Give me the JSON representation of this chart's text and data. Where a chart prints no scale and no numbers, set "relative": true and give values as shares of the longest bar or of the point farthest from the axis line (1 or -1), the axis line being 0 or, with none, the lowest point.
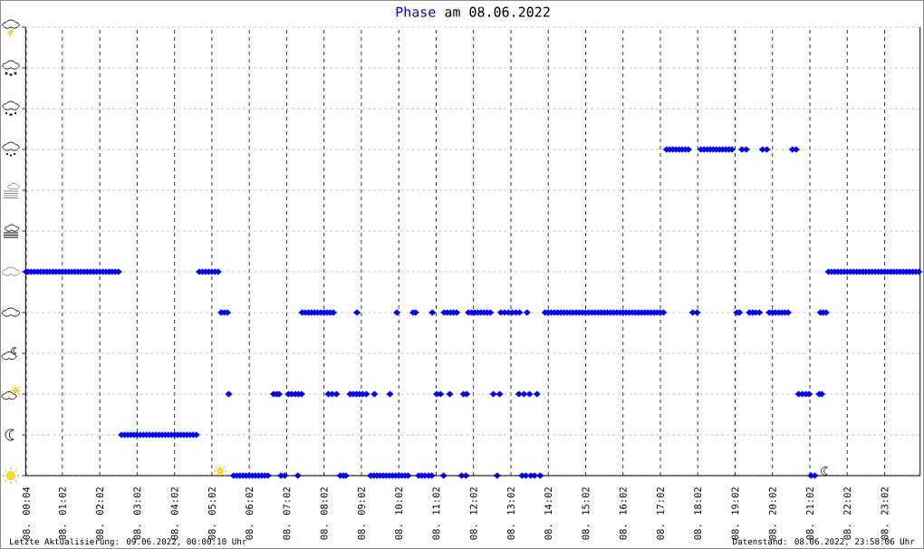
{
  "chart_data": {
    "type": "scatter",
    "title": "am 08.06.2022",
    "relative": true,
    "annotations": [
      "Letzte Aktualisierung: 09.06.2022, 00:00:10 Uhr",
      "Datenstand: 08.06.2022, 23:58:06 Uhr"
    ],
    "xlim": [
      "2022-06-08T00:03",
      "2022-06-08T23:59"
    ],
    "xticks": [
      {
        "value": "2022-06-08T00:04",
        "label": "08. 00:04"
      },
      {
        "value": "2022-06-08T01:02",
        "label": "08. 01:02"
      },
      {
        "value": "2022-06-08T02:02",
        "label": "08. 02:02"
      },
      {
        "value": "2022-06-08T03:02",
        "label": "08. 03:02"
      },
      {
        "value": "2022-06-08T04:02",
        "label": "08. 04:02"
      },
      {
        "value": "2022-06-08T05:02",
        "label": "08. 05:02"
      },
      {
        "value": "2022-06-08T06:02",
        "label": "08. 06:02"
      },
      {
        "value": "2022-06-08T07:02",
        "label": "08. 07:02"
      },
      {
        "value": "2022-06-08T08:02",
        "label": "08. 08:02"
      },
      {
        "value": "2022-06-08T09:02",
        "label": "08. 09:02"
      },
      {
        "value": "2022-06-08T10:02",
        "label": "08. 10:02"
      },
      {
        "value": "2022-06-08T11:02",
        "label": "08. 11:02"
      },
      {
        "value": "2022-06-08T12:02",
        "label": "08. 12:02"
      },
      {
        "value": "2022-06-08T13:02",
        "label": "08. 13:02"
      },
      {
        "value": "2022-06-08T14:02",
        "label": "08. 14:02"
      },
      {
        "value": "2022-06-08T15:02",
        "label": "08. 15:02"
      },
      {
        "value": "2022-06-08T16:02",
        "label": "08. 16:02"
      },
      {
        "value": "2022-06-08T17:02",
        "label": "08. 17:02"
      },
      {
        "value": "2022-06-08T18:02",
        "label": "08. 18:02"
      },
      {
        "value": "2022-06-08T19:02",
        "label": "08. 19:02"
      },
      {
        "value": "2022-06-08T20:02",
        "label": "08. 20:02"
      },
      {
        "value": "2022-06-08T21:02",
        "label": "08. 21:02"
      },
      {
        "value": "2022-06-08T22:02",
        "label": "08. 22:02"
      },
      {
        "value": "2022-06-08T23:02",
        "label": "08. 23:02"
      }
    ],
    "grid": true,
    "marker": "diamond",
    "series": [
      {
        "name": "Phase",
        "color": "#0000ff",
        "x": [
          "2022-06-08T00:04",
          "2022-06-08T00:07",
          "2022-06-08T00:12",
          "2022-06-08T00:17",
          "2022-06-08T00:22",
          "2022-06-08T00:27",
          "2022-06-08T00:32",
          "2022-06-08T00:37",
          "2022-06-08T00:42",
          "2022-06-08T00:47",
          "2022-06-08T00:52",
          "2022-06-08T00:57",
          "2022-06-08T01:02",
          "2022-06-08T01:07",
          "2022-06-08T01:12",
          "2022-06-08T01:17",
          "2022-06-08T01:22",
          "2022-06-08T01:27",
          "2022-06-08T01:32",
          "2022-06-08T01:37",
          "2022-06-08T01:42",
          "2022-06-08T01:47",
          "2022-06-08T01:52",
          "2022-06-08T01:57",
          "2022-06-08T02:02",
          "2022-06-08T02:07",
          "2022-06-08T02:12",
          "2022-06-08T02:17",
          "2022-06-08T02:22",
          "2022-06-08T02:27",
          "2022-06-08T02:32",
          "2022-06-08T02:37",
          "2022-06-08T02:42",
          "2022-06-08T02:47",
          "2022-06-08T02:52",
          "2022-06-08T02:57",
          "2022-06-08T03:02",
          "2022-06-08T03:07",
          "2022-06-08T03:12",
          "2022-06-08T03:17",
          "2022-06-08T03:22",
          "2022-06-08T03:27",
          "2022-06-08T03:32",
          "2022-06-08T03:37",
          "2022-06-08T03:42",
          "2022-06-08T03:47",
          "2022-06-08T03:52",
          "2022-06-08T03:57",
          "2022-06-08T04:02",
          "2022-06-08T04:07",
          "2022-06-08T04:12",
          "2022-06-08T04:17",
          "2022-06-08T04:22",
          "2022-06-08T04:27",
          "2022-06-08T04:32",
          "2022-06-08T04:37",
          "2022-06-08T04:42",
          "2022-06-08T04:47",
          "2022-06-08T04:52",
          "2022-06-08T04:57",
          "2022-06-08T05:02",
          "2022-06-08T05:07",
          "2022-06-08T05:12",
          "2022-06-08T05:17",
          "2022-06-08T05:22",
          "2022-06-08T05:27",
          "2022-06-08T05:29",
          "2022-06-08T05:37",
          "2022-06-08T05:42",
          "2022-06-08T05:47",
          "2022-06-08T05:52",
          "2022-06-08T05:57",
          "2022-06-08T06:02",
          "2022-06-08T06:07",
          "2022-06-08T06:12",
          "2022-06-08T06:17",
          "2022-06-08T06:22",
          "2022-06-08T06:27",
          "2022-06-08T06:32",
          "2022-06-08T06:41",
          "2022-06-08T06:46",
          "2022-06-08T06:50",
          "2022-06-08T06:53",
          "2022-06-08T06:59",
          "2022-06-08T07:05",
          "2022-06-08T07:10",
          "2022-06-08T07:16",
          "2022-06-08T07:21",
          "2022-06-08T07:26",
          "2022-06-08T07:20",
          "2022-06-08T07:27",
          "2022-06-08T07:32",
          "2022-06-08T07:37",
          "2022-06-08T07:42",
          "2022-06-08T07:47",
          "2022-06-08T07:52",
          "2022-06-08T07:57",
          "2022-06-08T08:02",
          "2022-06-08T08:07",
          "2022-06-08T08:12",
          "2022-06-08T08:17",
          "2022-06-08T08:09",
          "2022-06-08T08:15",
          "2022-06-08T08:22",
          "2022-06-08T08:28",
          "2022-06-08T08:33",
          "2022-06-08T08:37",
          "2022-06-08T08:44",
          "2022-06-08T08:49",
          "2022-06-08T08:54",
          "2022-06-08T08:59",
          "2022-06-08T09:04",
          "2022-06-08T09:10",
          "2022-06-08T08:55",
          "2022-06-08T09:17",
          "2022-06-08T09:22",
          "2022-06-08T09:27",
          "2022-06-08T09:32",
          "2022-06-08T09:37",
          "2022-06-08T09:42",
          "2022-06-08T09:47",
          "2022-06-08T09:52",
          "2022-06-08T09:57",
          "2022-06-08T10:02",
          "2022-06-08T10:07",
          "2022-06-08T10:12",
          "2022-06-08T10:17",
          "2022-06-08T09:23",
          "2022-06-08T09:48",
          "2022-06-08T09:59",
          "2022-06-08T10:25",
          "2022-06-08T10:29",
          "2022-06-08T10:56",
          "2022-06-08T10:34",
          "2022-06-08T10:39",
          "2022-06-08T10:44",
          "2022-06-08T10:50",
          "2022-06-08T10:55",
          "2022-06-08T11:03",
          "2022-06-08T11:09",
          "2022-06-08T11:14",
          "2022-06-08T11:15",
          "2022-06-08T11:20",
          "2022-06-08T11:25",
          "2022-06-08T11:30",
          "2022-06-08T11:35",
          "2022-06-08T11:24",
          "2022-06-08T11:43",
          "2022-06-08T11:50",
          "2022-06-08T11:46",
          "2022-06-08T11:51",
          "2022-06-08T11:54",
          "2022-06-08T11:59",
          "2022-06-08T12:04",
          "2022-06-08T12:09",
          "2022-06-08T12:14",
          "2022-06-08T12:19",
          "2022-06-08T12:24",
          "2022-06-08T12:29",
          "2022-06-08T12:34",
          "2022-06-08T12:44",
          "2022-06-08T12:40",
          "2022-06-08T12:46",
          "2022-06-08T12:52",
          "2022-06-08T12:58",
          "2022-06-08T13:04",
          "2022-06-08T13:10",
          "2022-06-08T13:16",
          "2022-06-08T13:15",
          "2022-06-08T13:23",
          "2022-06-08T13:32",
          "2022-06-08T13:44",
          "2022-06-08T13:20",
          "2022-06-08T13:26",
          "2022-06-08T13:34",
          "2022-06-08T13:40",
          "2022-06-08T13:49",
          "2022-06-08T13:28",
          "2022-06-08T13:57",
          "2022-06-08T14:02",
          "2022-06-08T14:07",
          "2022-06-08T14:12",
          "2022-06-08T14:17",
          "2022-06-08T14:22",
          "2022-06-08T14:27",
          "2022-06-08T14:32",
          "2022-06-08T14:37",
          "2022-06-08T14:42",
          "2022-06-08T14:47",
          "2022-06-08T14:52",
          "2022-06-08T14:57",
          "2022-06-08T15:02",
          "2022-06-08T15:07",
          "2022-06-08T15:12",
          "2022-06-08T15:17",
          "2022-06-08T15:22",
          "2022-06-08T15:27",
          "2022-06-08T15:32",
          "2022-06-08T15:37",
          "2022-06-08T15:42",
          "2022-06-08T15:47",
          "2022-06-08T15:52",
          "2022-06-08T15:57",
          "2022-06-08T16:02",
          "2022-06-08T16:07",
          "2022-06-08T16:12",
          "2022-06-08T16:17",
          "2022-06-08T16:22",
          "2022-06-08T16:27",
          "2022-06-08T16:32",
          "2022-06-08T16:37",
          "2022-06-08T16:42",
          "2022-06-08T16:47",
          "2022-06-08T16:52",
          "2022-06-08T16:57",
          "2022-06-08T17:02",
          "2022-06-08T17:07",
          "2022-06-08T17:12",
          "2022-06-08T17:17",
          "2022-06-08T17:22",
          "2022-06-08T17:27",
          "2022-06-08T17:32",
          "2022-06-08T17:37",
          "2022-06-08T17:42",
          "2022-06-08T17:47",
          "2022-06-08T17:54",
          "2022-06-08T18:01",
          "2022-06-08T18:07",
          "2022-06-08T18:12",
          "2022-06-08T18:17",
          "2022-06-08T18:22",
          "2022-06-08T18:27",
          "2022-06-08T18:32",
          "2022-06-08T18:37",
          "2022-06-08T18:42",
          "2022-06-08T18:47",
          "2022-06-08T18:52",
          "2022-06-08T18:57",
          "2022-06-08T19:05",
          "2022-06-08T19:09",
          "2022-06-08T19:13",
          "2022-06-08T19:20",
          "2022-06-08T19:25",
          "2022-06-08T19:30",
          "2022-06-08T19:35",
          "2022-06-08T19:41",
          "2022-06-08T19:46",
          "2022-06-08T19:53",
          "2022-06-08T19:57",
          "2022-06-08T20:02",
          "2022-06-08T20:07",
          "2022-06-08T20:12",
          "2022-06-08T20:17",
          "2022-06-08T20:22",
          "2022-06-08T20:27",
          "2022-06-08T20:34",
          "2022-06-08T20:40",
          "2022-06-08T20:44",
          "2022-06-08T20:50",
          "2022-06-08T20:56",
          "2022-06-08T21:01",
          "2022-06-08T21:04",
          "2022-06-08T21:10",
          "2022-06-08T21:17",
          "2022-06-08T21:21",
          "2022-06-08T21:19",
          "2022-06-08T21:23",
          "2022-06-08T21:28",
          "2022-06-08T21:32",
          "2022-06-08T21:37",
          "2022-06-08T21:42",
          "2022-06-08T21:47",
          "2022-06-08T21:52",
          "2022-06-08T21:57",
          "2022-06-08T22:02",
          "2022-06-08T22:07",
          "2022-06-08T22:12",
          "2022-06-08T22:17",
          "2022-06-08T22:22",
          "2022-06-08T22:27",
          "2022-06-08T22:32",
          "2022-06-08T22:37",
          "2022-06-08T22:42",
          "2022-06-08T22:47",
          "2022-06-08T22:52",
          "2022-06-08T22:57",
          "2022-06-08T23:02",
          "2022-06-08T23:07",
          "2022-06-08T23:12",
          "2022-06-08T23:17",
          "2022-06-08T23:22",
          "2022-06-08T23:27",
          "2022-06-08T23:32",
          "2022-06-08T23:37",
          "2022-06-08T23:42",
          "2022-06-08T23:47",
          "2022-06-08T23:52",
          "2022-06-08T23:57"
        ],
        "values": [
          0.625,
          0.625,
          0.625,
          0.625,
          0.625,
          0.625,
          0.625,
          0.625,
          0.625,
          0.625,
          0.625,
          0.625,
          0.625,
          0.625,
          0.625,
          0.625,
          0.625,
          0.625,
          0.625,
          0.625,
          0.625,
          0.625,
          0.625,
          0.625,
          0.625,
          0.625,
          0.625,
          0.625,
          0.625,
          0.625,
          0.625,
          0.125,
          0.125,
          0.125,
          0.125,
          0.125,
          0.125,
          0.125,
          0.125,
          0.125,
          0.125,
          0.125,
          0.125,
          0.125,
          0.125,
          0.125,
          0.125,
          0.125,
          0.125,
          0.125,
          0.125,
          0.125,
          0.125,
          0.125,
          0.125,
          0.125,
          0.625,
          0.625,
          0.625,
          0.625,
          0.625,
          0.625,
          0.625,
          0.5,
          0.5,
          0.5,
          0.25,
          0,
          0,
          0,
          0,
          0,
          0,
          0,
          0,
          0,
          0,
          0,
          0,
          0.25,
          0.25,
          0.25,
          0,
          0,
          0.25,
          0.25,
          0.25,
          0.25,
          0.25,
          0,
          0.5,
          0.5,
          0.5,
          0.5,
          0.5,
          0.5,
          0.5,
          0.5,
          0.5,
          0.5,
          0.5,
          0.25,
          0.25,
          0.25,
          0,
          0,
          0,
          0.25,
          0.25,
          0.25,
          0.25,
          0.25,
          0.25,
          0.5,
          0,
          0,
          0,
          0,
          0,
          0,
          0,
          0,
          0,
          0,
          0,
          0,
          0,
          0.25,
          0.25,
          0.5,
          0.5,
          0.5,
          0.5,
          0,
          0,
          0,
          0,
          0,
          0.25,
          0.25,
          0,
          0.5,
          0.5,
          0.5,
          0.5,
          0.5,
          0.25,
          0,
          0,
          0.25,
          0.25,
          0.5,
          0.5,
          0.5,
          0.5,
          0.5,
          0.5,
          0.5,
          0.5,
          0.25,
          0.25,
          0,
          0.5,
          0.5,
          0.5,
          0.5,
          0.5,
          0.5,
          0.25,
          0.25,
          0.25,
          0.25,
          0,
          0,
          0,
          0,
          0,
          0.5,
          0.5,
          0.5,
          0.5,
          0.5,
          0.5,
          0.5,
          0.5,
          0.5,
          0.5,
          0.5,
          0.5,
          0.5,
          0.5,
          0.5,
          0.5,
          0.5,
          0.5,
          0.5,
          0.5,
          0.5,
          0.5,
          0.5,
          0.5,
          0.5,
          0.5,
          0.5,
          0.5,
          0.5,
          0.5,
          0.5,
          0.5,
          0.5,
          0.5,
          0.5,
          0.5,
          0.5,
          0.5,
          0.5,
          0.5,
          1,
          1,
          1,
          1,
          1,
          1,
          1,
          1,
          0.5,
          0.5,
          1,
          1,
          1,
          1,
          1,
          1,
          1,
          1,
          1,
          1,
          1,
          0.5,
          0.5,
          1,
          1,
          0.5,
          0.5,
          0.5,
          0.5,
          1,
          1,
          0.5,
          0.5,
          0.5,
          0.5,
          0.5,
          0.5,
          0.5,
          1,
          1,
          0.25,
          0.25,
          0.25,
          0.25,
          0,
          0,
          0.25,
          0.25,
          0.5,
          0.5,
          0.5,
          0.625,
          0.625,
          0.625,
          0.625,
          0.625,
          0.625,
          0.625,
          0.625,
          0.625,
          0.625,
          0.625,
          0.625,
          0.625,
          0.625,
          0.625,
          0.625,
          0.625,
          0.625,
          0.625,
          0.625,
          0.625,
          0.625,
          0.625,
          0.625,
          0.625,
          0.625,
          0.625,
          0.625,
          0.625,
          0.625
        ]
      }
    ]
  }
}
